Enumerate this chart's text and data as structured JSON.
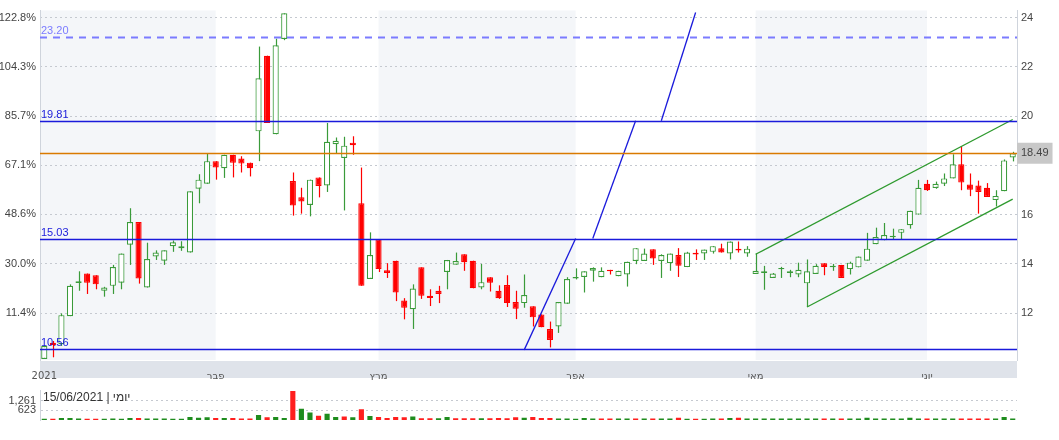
{
  "chart_data": [
    {
      "type": "candlestick",
      "categories": [
        "2021",
        null,
        null,
        null,
        null,
        null,
        null,
        null,
        null,
        null,
        null,
        null,
        null,
        null,
        null,
        null,
        null,
        null,
        null,
        null,
        "פבר",
        null,
        null,
        null,
        null,
        null,
        null,
        null,
        null,
        null,
        null,
        null,
        null,
        null,
        null,
        null,
        null,
        null,
        null,
        "מרץ",
        null,
        null,
        null,
        null,
        null,
        null,
        null,
        null,
        null,
        null,
        null,
        null,
        null,
        null,
        null,
        null,
        null,
        null,
        null,
        null,
        null,
        null,
        "אפר",
        null,
        null,
        null,
        null,
        null,
        null,
        null,
        null,
        null,
        null,
        null,
        null,
        null,
        null,
        null,
        null,
        null,
        null,
        null,
        null,
        "מאי",
        null,
        null,
        null,
        null,
        null,
        null,
        null,
        null,
        null,
        null,
        null,
        null,
        null,
        null,
        null,
        null,
        null,
        null,
        null,
        "יוני",
        null,
        null,
        null,
        null,
        null,
        null,
        null,
        null,
        null,
        null
      ],
      "ohlc": [
        [
          10.14,
          10.67,
          10.14,
          10.67
        ],
        [
          10.8,
          10.87,
          10.21,
          10.71
        ],
        [
          10.74,
          11.99,
          10.67,
          11.92
        ],
        [
          11.88,
          13.17,
          11.88,
          13.11
        ],
        [
          13.22,
          13.7,
          12.91,
          13.3
        ],
        [
          13.61,
          13.61,
          12.78,
          13.24
        ],
        [
          13.54,
          13.54,
          12.97,
          13.17
        ],
        [
          12.91,
          13.07,
          12.67,
          13.04
        ],
        [
          13.11,
          13.96,
          12.78,
          13.87
        ],
        [
          13.24,
          14.42,
          12.97,
          14.42
        ],
        [
          14.78,
          16.26,
          13.96,
          15.7
        ],
        [
          15.7,
          15.7,
          13.2,
          13.41
        ],
        [
          13.04,
          14.86,
          13.04,
          14.2
        ],
        [
          14.3,
          14.55,
          14.16,
          14.46
        ],
        [
          14.13,
          14.55,
          13.96,
          14.55
        ],
        [
          14.72,
          14.95,
          14.49,
          14.88
        ],
        [
          14.64,
          14.92,
          14.53,
          14.72
        ],
        [
          14.46,
          16.95,
          14.46,
          16.95
        ],
        [
          17.05,
          17.64,
          16.46,
          17.42
        ],
        [
          17.25,
          18.47,
          17.25,
          18.17
        ],
        [
          18.17,
          18.17,
          17.42,
          17.91
        ],
        [
          17.88,
          18.43,
          17.49,
          18.43
        ],
        [
          18.43,
          18.43,
          17.51,
          18.11
        ],
        [
          18.28,
          18.37,
          17.71,
          18.07
        ],
        [
          18.11,
          18.11,
          17.55,
          17.88
        ],
        [
          19.38,
          22.82,
          18.17,
          21.53
        ],
        [
          22.45,
          22.45,
          19.72,
          19.72
        ],
        [
          19.26,
          23.14,
          19.26,
          22.87
        ],
        [
          23.13,
          24.17,
          23.08,
          24.17
        ],
        [
          17.36,
          17.71,
          15.96,
          16.37
        ],
        [
          16.7,
          17.09,
          16.04,
          16.53
        ],
        [
          16.39,
          17.42,
          15.93,
          17.42
        ],
        [
          17.51,
          17.51,
          16.7,
          17.16
        ],
        [
          17.18,
          19.72,
          16.92,
          18.96
        ],
        [
          18.86,
          19.13,
          18.5,
          19.0
        ],
        [
          18.3,
          19.16,
          16.17,
          18.8
        ],
        [
          18.92,
          19.18,
          18.43,
          18.82
        ],
        [
          16.46,
          17.91,
          13.11,
          13.11
        ],
        [
          13.39,
          15.28,
          13.39,
          14.36
        ],
        [
          15.01,
          15.01,
          13.67,
          13.79
        ],
        [
          13.74,
          14.03,
          13.43,
          13.63
        ],
        [
          14.13,
          14.13,
          12.49,
          12.84
        ],
        [
          12.51,
          12.61,
          11.75,
          12.22
        ],
        [
          12.16,
          13.17,
          11.36,
          13.0
        ],
        [
          13.86,
          13.86,
          12.58,
          12.71
        ],
        [
          12.71,
          12.97,
          12.29,
          12.62
        ],
        [
          12.91,
          13.11,
          12.41,
          12.78
        ],
        [
          13.67,
          14.16,
          12.97,
          14.16
        ],
        [
          13.97,
          14.46,
          13.97,
          14.12
        ],
        [
          14.39,
          14.39,
          13.72,
          14.07
        ],
        [
          14.13,
          14.13,
          13.01,
          13.01
        ],
        [
          13.04,
          14.0,
          12.97,
          13.26
        ],
        [
          13.46,
          13.46,
          12.88,
          13.24
        ],
        [
          12.91,
          13.13,
          12.58,
          12.61
        ],
        [
          13.14,
          13.54,
          12.25,
          12.41
        ],
        [
          12.45,
          12.91,
          11.76,
          12.18
        ],
        [
          12.41,
          13.57,
          12.22,
          12.74
        ],
        [
          12.28,
          12.28,
          11.46,
          11.83
        ],
        [
          11.95,
          11.95,
          11.43,
          11.43
        ],
        [
          11.36,
          11.66,
          10.61,
          10.91
        ],
        [
          11.46,
          12.45,
          11.2,
          12.45
        ],
        [
          12.38,
          13.46,
          12.38,
          13.39
        ],
        [
          13.41,
          13.82,
          13.37,
          13.47
        ],
        [
          13.47,
          13.7,
          12.84,
          13.7
        ],
        [
          13.72,
          13.86,
          13.28,
          13.83
        ],
        [
          13.46,
          13.86,
          13.46,
          13.72
        ],
        [
          13.76,
          13.76,
          13.57,
          13.7
        ],
        [
          13.5,
          13.72,
          13.5,
          13.72
        ],
        [
          13.57,
          14.09,
          13.08,
          14.09
        ],
        [
          14.12,
          14.64,
          13.99,
          14.64
        ],
        [
          14.12,
          14.62,
          14.12,
          14.42
        ],
        [
          14.59,
          14.59,
          13.96,
          14.22
        ],
        [
          14.12,
          14.39,
          13.43,
          14.36
        ],
        [
          14.03,
          14.42,
          13.72,
          14.42
        ],
        [
          14.36,
          14.64,
          13.47,
          13.92
        ],
        [
          13.87,
          14.49,
          13.87,
          14.46
        ],
        [
          14.45,
          14.59,
          14.16,
          14.38
        ],
        [
          14.42,
          14.58,
          14.16,
          14.58
        ],
        [
          14.49,
          14.72,
          14.42,
          14.72
        ],
        [
          14.64,
          14.82,
          14.46,
          14.46
        ],
        [
          14.42,
          14.91,
          14.18,
          14.91
        ],
        [
          14.62,
          14.91,
          14.46,
          14.54
        ],
        [
          14.42,
          14.72,
          14.29,
          14.62
        ],
        [
          13.59,
          14.42,
          13.59,
          13.72
        ],
        [
          13.63,
          13.92,
          12.95,
          13.7
        ],
        [
          13.43,
          13.63,
          13.43,
          13.61
        ],
        [
          13.78,
          13.88,
          13.43,
          13.83
        ],
        [
          13.63,
          13.76,
          13.46,
          13.7
        ],
        [
          13.57,
          14.05,
          13.46,
          13.76
        ],
        [
          13.21,
          14.18,
          12.25,
          13.7
        ],
        [
          13.59,
          13.99,
          13.59,
          13.92
        ],
        [
          14.03,
          14.03,
          13.54,
          13.87
        ],
        [
          13.86,
          14.0,
          13.72,
          13.93
        ],
        [
          13.96,
          13.96,
          13.43,
          13.43
        ],
        [
          13.79,
          14.09,
          13.57,
          14.05
        ],
        [
          13.86,
          14.3,
          13.86,
          14.3
        ],
        [
          14.13,
          15.26,
          14.13,
          14.62
        ],
        [
          14.8,
          15.47,
          14.8,
          15.09
        ],
        [
          14.96,
          15.66,
          14.96,
          15.17
        ],
        [
          15.08,
          15.43,
          14.97,
          15.14
        ],
        [
          15.26,
          15.41,
          14.97,
          15.41
        ],
        [
          15.57,
          16.16,
          15.43,
          16.16
        ],
        [
          16.0,
          17.41,
          16.0,
          17.09
        ],
        [
          17.25,
          17.41,
          16.96,
          16.99
        ],
        [
          17.08,
          17.34,
          17.05,
          17.25
        ],
        [
          17.25,
          17.67,
          17.16,
          17.47
        ],
        [
          17.47,
          18.45,
          17.47,
          18.04
        ],
        [
          18.04,
          18.78,
          16.99,
          17.3
        ],
        [
          17.22,
          17.67,
          16.75,
          17.01
        ],
        [
          17.18,
          17.38,
          16.04,
          16.92
        ],
        [
          17.09,
          17.28,
          16.72,
          16.72
        ],
        [
          16.59,
          16.99,
          16.33,
          16.76
        ],
        [
          16.95,
          18.24,
          16.95,
          18.2
        ],
        [
          18.32,
          18.55,
          18.16,
          18.49
        ]
      ],
      "colors": [
        "#3a9b3a",
        "#ff0000",
        "#3a9b3a",
        "#3a9b3a",
        "#3a9b3a",
        "#ff0000",
        "#ff0000",
        "#3a9b3a",
        "#3a9b3a",
        "#3a9b3a",
        "#3a9b3a",
        "#ff0000",
        "#3a9b3a",
        "#3a9b3a",
        "#3a9b3a",
        "#3a9b3a",
        "#3a9b3a",
        "#3a9b3a",
        "#3a9b3a",
        "#3a9b3a",
        "#ff0000",
        "#3a9b3a",
        "#ff0000",
        "#ff0000",
        "#ff0000",
        "#3a9b3a",
        "#ff0000",
        "#3a9b3a",
        "#3a9b3a",
        "#ff0000",
        "#ff0000",
        "#3a9b3a",
        "#ff0000",
        "#3a9b3a",
        "#3a9b3a",
        "#3a9b3a",
        "#ff0000",
        "#ff0000",
        "#3a9b3a",
        "#ff0000",
        "#ff0000",
        "#ff0000",
        "#ff0000",
        "#3a9b3a",
        "#ff0000",
        "#ff0000",
        "#ff0000",
        "#3a9b3a",
        "#3a9b3a",
        "#ff0000",
        "#ff0000",
        "#3a9b3a",
        "#ff0000",
        "#ff0000",
        "#ff0000",
        "#ff0000",
        "#3a9b3a",
        "#ff0000",
        "#ff0000",
        "#ff0000",
        "#3a9b3a",
        "#3a9b3a",
        "#3a9b3a",
        "#3a9b3a",
        "#3a9b3a",
        "#3a9b3a",
        "#ff0000",
        "#3a9b3a",
        "#3a9b3a",
        "#3a9b3a",
        "#3a9b3a",
        "#ff0000",
        "#3a9b3a",
        "#3a9b3a",
        "#ff0000",
        "#3a9b3a",
        "#ff0000",
        "#3a9b3a",
        "#3a9b3a",
        "#ff0000",
        "#3a9b3a",
        "#ff0000",
        "#3a9b3a",
        "#3a9b3a",
        "#3a9b3a",
        "#3a9b3a",
        "#3a9b3a",
        "#3a9b3a",
        "#3a9b3a",
        "#3a9b3a",
        "#3a9b3a",
        "#ff0000",
        "#3a9b3a",
        "#ff0000",
        "#3a9b3a",
        "#3a9b3a",
        "#3a9b3a",
        "#3a9b3a",
        "#3a9b3a",
        "#3a9b3a",
        "#3a9b3a",
        "#3a9b3a",
        "#3a9b3a",
        "#ff0000",
        "#3a9b3a",
        "#3a9b3a",
        "#3a9b3a",
        "#ff0000",
        "#ff0000",
        "#ff0000",
        "#ff0000",
        "#3a9b3a",
        "#3a9b3a",
        "#3a9b3a"
      ],
      "series": [
        {
          "type": "line",
          "color": "#2e9a2e",
          "values": [
            null,
            null,
            null,
            null,
            null,
            null,
            null,
            null,
            null,
            null,
            null,
            null,
            null,
            null,
            null,
            null,
            null,
            null,
            null,
            null,
            null,
            null,
            null,
            null,
            null,
            null,
            null,
            null,
            null,
            null,
            null,
            null,
            null,
            null,
            null,
            null,
            null,
            null,
            null,
            null,
            null,
            null,
            null,
            null,
            null,
            null,
            null,
            null,
            null,
            null,
            null,
            null,
            null,
            null,
            null,
            null,
            null,
            null,
            null,
            null,
            null,
            null,
            null,
            null,
            null,
            null,
            null,
            null,
            null,
            null,
            null,
            null,
            null,
            null,
            null,
            null,
            null,
            null,
            null,
            null,
            null,
            null,
            null,
            14.39,
            null,
            null,
            null,
            null,
            null,
            null,
            null,
            null,
            null,
            null,
            null,
            null,
            null,
            null,
            null,
            null,
            null,
            null,
            null,
            null,
            null,
            null,
            null,
            null,
            null,
            null,
            null,
            null,
            null,
            19.86
          ]
        },
        {
          "type": "line",
          "color": "#2e9a2e",
          "values": [
            null,
            null,
            null,
            null,
            null,
            null,
            null,
            null,
            null,
            null,
            null,
            null,
            null,
            null,
            null,
            null,
            null,
            null,
            null,
            null,
            null,
            null,
            null,
            null,
            null,
            null,
            null,
            null,
            null,
            null,
            null,
            null,
            null,
            null,
            null,
            null,
            null,
            null,
            null,
            null,
            null,
            null,
            null,
            null,
            null,
            null,
            null,
            null,
            null,
            null,
            null,
            null,
            null,
            null,
            null,
            null,
            null,
            null,
            null,
            null,
            null,
            null,
            null,
            null,
            null,
            null,
            null,
            null,
            null,
            null,
            null,
            null,
            null,
            null,
            null,
            null,
            null,
            null,
            null,
            null,
            null,
            null,
            null,
            null,
            null,
            null,
            null,
            null,
            null,
            12.25,
            null,
            null,
            null,
            null,
            null,
            null,
            null,
            null,
            null,
            null,
            null,
            null,
            null,
            null,
            null,
            null,
            null,
            null,
            null,
            null,
            null,
            null,
            null,
            16.63
          ]
        },
        {
          "type": "line",
          "color": "#1a1adb",
          "values": [
            null,
            null,
            null,
            null,
            null,
            null,
            null,
            null,
            null,
            null,
            null,
            null,
            null,
            null,
            null,
            null,
            null,
            null,
            null,
            null,
            null,
            null,
            null,
            null,
            null,
            null,
            null,
            null,
            null,
            null,
            null,
            null,
            null,
            null,
            null,
            null,
            null,
            null,
            null,
            null,
            null,
            null,
            null,
            null,
            null,
            null,
            null,
            null,
            null,
            null,
            null,
            null,
            null,
            null,
            null,
            null,
            10.51,
            null,
            null,
            null,
            null,
            null,
            15.03,
            null,
            null,
            null,
            null,
            null,
            null,
            null,
            null,
            null,
            null,
            null,
            null,
            null,
            null,
            null,
            null,
            null,
            null,
            null,
            null,
            null,
            null,
            null,
            null,
            null,
            null,
            null,
            null,
            null,
            null,
            null,
            null,
            null,
            null,
            null,
            null,
            null,
            null,
            null,
            null,
            null,
            null,
            null,
            null,
            null,
            null,
            null,
            null,
            null,
            null,
            null
          ]
        },
        {
          "type": "line",
          "color": "#1a1adb",
          "values": [
            null,
            null,
            null,
            null,
            null,
            null,
            null,
            null,
            null,
            null,
            null,
            null,
            null,
            null,
            null,
            null,
            null,
            null,
            null,
            null,
            null,
            null,
            null,
            null,
            null,
            null,
            null,
            null,
            null,
            null,
            null,
            null,
            null,
            null,
            null,
            null,
            null,
            null,
            null,
            null,
            null,
            null,
            null,
            null,
            null,
            null,
            null,
            null,
            null,
            null,
            null,
            null,
            null,
            null,
            null,
            null,
            null,
            null,
            null,
            null,
            null,
            null,
            null,
            null,
            15.03,
            null,
            null,
            null,
            null,
            19.81,
            null,
            null,
            null,
            null,
            null,
            null,
            null,
            null,
            null,
            null,
            null,
            null,
            null,
            null,
            null,
            null,
            null,
            null,
            null,
            null,
            null,
            null,
            null,
            null,
            null,
            null,
            null,
            null,
            null,
            null,
            null,
            null,
            null,
            null,
            null,
            null,
            null,
            null,
            null,
            null,
            null,
            null,
            null,
            null
          ]
        },
        {
          "type": "line",
          "color": "#1a1adb",
          "values": [
            null,
            null,
            null,
            null,
            null,
            null,
            null,
            null,
            null,
            null,
            null,
            null,
            null,
            null,
            null,
            null,
            null,
            null,
            null,
            null,
            null,
            null,
            null,
            null,
            null,
            null,
            null,
            null,
            null,
            null,
            null,
            null,
            null,
            null,
            null,
            null,
            null,
            null,
            null,
            null,
            null,
            null,
            null,
            null,
            null,
            null,
            null,
            null,
            null,
            null,
            null,
            null,
            null,
            null,
            null,
            null,
            null,
            null,
            null,
            null,
            null,
            null,
            null,
            null,
            null,
            null,
            null,
            null,
            null,
            null,
            null,
            null,
            19.81,
            null,
            null,
            null,
            24.2,
            null,
            null,
            null,
            null,
            null,
            null,
            null,
            null,
            null,
            null,
            null,
            null,
            null,
            null,
            null,
            null,
            null,
            null,
            null,
            null,
            null,
            null,
            null,
            null,
            null,
            null,
            null,
            null,
            null,
            null,
            null,
            null,
            null,
            null,
            null,
            null,
            null
          ]
        }
      ],
      "ylim": [
        10.1,
        24.28
      ],
      "yticks": [
        12,
        14,
        16,
        {
          "value": 18,
          "label": null
        },
        {
          "value": 18.49,
          "label": "18.49"
        },
        20,
        22,
        24
      ],
      "y2lim": [
        -6.24,
        125.4
      ],
      "y2ticks": [
        {
          "value": 11.4,
          "label": "11.4%"
        },
        {
          "value": 30.0,
          "label": "30.0%"
        },
        {
          "value": 48.6,
          "label": "48.6%"
        },
        {
          "value": 67.1,
          "label": "67.1%"
        },
        {
          "value": 85.7,
          "label": "85.7%"
        },
        {
          "value": 104.3,
          "label": "104.3%"
        },
        {
          "value": 122.8,
          "label": "122.8%"
        }
      ],
      "ref_lines": [
        {
          "axis": "y",
          "value": 23.2,
          "label": "23.20",
          "color": "#7b7bff",
          "line_style": "dashed"
        },
        {
          "axis": "y",
          "value": 19.81,
          "label": "19.81",
          "color": "#1a1adb"
        },
        {
          "axis": "y",
          "value": 18.49,
          "color": "#d97a00"
        },
        {
          "axis": "y",
          "value": 15.03,
          "label": "15.03",
          "color": "#1a1adb"
        },
        {
          "axis": "y",
          "value": 10.56,
          "label": "10.56",
          "color": "#1a1adb"
        }
      ],
      "bands": [
        {
          "axis": "x",
          "from": "2021",
          "to": "פבר",
          "color": "#f4f6f9"
        },
        {
          "axis": "x",
          "from": "מרץ",
          "to": "אפר",
          "color": "#f4f6f9"
        },
        {
          "axis": "x",
          "from": "מאי",
          "to": "יוני",
          "color": "#f4f6f9"
        }
      ],
      "grid": "y"
    },
    {
      "type": "bar",
      "title": "15/06/2021 | יומי",
      "categories": [
        null,
        null,
        null,
        null,
        null,
        null,
        null,
        null,
        null,
        null,
        null,
        null,
        null,
        null,
        null,
        null,
        null,
        null,
        null,
        null,
        null,
        null,
        null,
        null,
        null,
        null,
        null,
        null,
        null,
        null,
        null,
        null,
        null,
        null,
        null,
        null,
        null,
        null,
        null,
        null,
        null,
        null,
        null,
        null,
        null,
        null,
        null,
        null,
        null,
        null,
        null,
        null,
        null,
        null,
        null,
        null,
        null,
        null,
        null,
        null,
        null,
        null,
        null,
        null,
        null,
        null,
        null,
        null,
        null,
        null,
        null,
        null,
        null,
        null,
        null,
        null,
        null,
        null,
        null,
        null,
        null,
        null,
        null,
        null,
        null,
        null,
        null,
        null,
        null,
        null,
        null,
        null,
        null,
        null,
        null,
        null,
        null,
        null,
        null,
        null,
        null,
        null,
        null,
        null,
        null,
        null,
        null,
        null,
        null,
        null,
        null,
        null,
        null,
        null
      ],
      "values": [
        80,
        80,
        130,
        130,
        100,
        80,
        80,
        80,
        100,
        80,
        130,
        130,
        100,
        100,
        100,
        80,
        80,
        200,
        150,
        170,
        130,
        130,
        130,
        100,
        100,
        330,
        180,
        200,
        130,
        1870,
        720,
        480,
        280,
        410,
        200,
        230,
        180,
        690,
        260,
        200,
        130,
        200,
        170,
        230,
        110,
        110,
        110,
        200,
        110,
        110,
        110,
        110,
        110,
        130,
        110,
        170,
        150,
        200,
        130,
        130,
        100,
        100,
        80,
        130,
        100,
        100,
        100,
        100,
        100,
        100,
        100,
        100,
        100,
        100,
        150,
        80,
        80,
        80,
        100,
        100,
        130,
        150,
        100,
        100,
        100,
        100,
        100,
        100,
        100,
        100,
        100,
        100,
        100,
        100,
        100,
        100,
        150,
        100,
        100,
        100,
        100,
        150,
        100,
        100,
        100,
        100,
        100,
        100,
        100,
        100,
        100,
        100,
        200,
        100
      ],
      "colors": [
        "#1e8c1e",
        "#ff1e1e",
        "#1e8c1e",
        "#1e8c1e",
        "#1e8c1e",
        "#ff1e1e",
        "#ff1e1e",
        "#1e8c1e",
        "#1e8c1e",
        "#1e8c1e",
        "#1e8c1e",
        "#ff1e1e",
        "#1e8c1e",
        "#1e8c1e",
        "#1e8c1e",
        "#1e8c1e",
        "#1e8c1e",
        "#1e8c1e",
        "#1e8c1e",
        "#1e8c1e",
        "#ff1e1e",
        "#1e8c1e",
        "#ff1e1e",
        "#ff1e1e",
        "#ff1e1e",
        "#1e8c1e",
        "#ff1e1e",
        "#1e8c1e",
        "#1e8c1e",
        "#ff1e1e",
        "#1e8c1e",
        "#1e8c1e",
        "#ff1e1e",
        "#1e8c1e",
        "#1e8c1e",
        "#ff1e1e",
        "#1e8c1e",
        "#ff1e1e",
        "#1e8c1e",
        "#ff1e1e",
        "#ff1e1e",
        "#ff1e1e",
        "#ff1e1e",
        "#1e8c1e",
        "#ff1e1e",
        "#ff1e1e",
        "#1e8c1e",
        "#1e8c1e",
        "#ff1e1e",
        "#ff1e1e",
        "#ff1e1e",
        "#1e8c1e",
        "#ff1e1e",
        "#ff1e1e",
        "#ff1e1e",
        "#ff1e1e",
        "#1e8c1e",
        "#ff1e1e",
        "#ff1e1e",
        "#ff1e1e",
        "#1e8c1e",
        "#1e8c1e",
        "#1e8c1e",
        "#1e8c1e",
        "#1e8c1e",
        "#ff1e1e",
        "#ff1e1e",
        "#1e8c1e",
        "#1e8c1e",
        "#ff1e1e",
        "#1e8c1e",
        "#ff1e1e",
        "#1e8c1e",
        "#1e8c1e",
        "#ff1e1e",
        "#1e8c1e",
        "#ff1e1e",
        "#1e8c1e",
        "#1e8c1e",
        "#ff1e1e",
        "#1e8c1e",
        "#ff1e1e",
        "#1e8c1e",
        "#1e8c1e",
        "#1e8c1e",
        "#1e8c1e",
        "#1e8c1e",
        "#1e8c1e",
        "#1e8c1e",
        "#1e8c1e",
        "#1e8c1e",
        "#ff1e1e",
        "#1e8c1e",
        "#ff1e1e",
        "#1e8c1e",
        "#1e8c1e",
        "#1e8c1e",
        "#1e8c1e",
        "#1e8c1e",
        "#1e8c1e",
        "#1e8c1e",
        "#1e8c1e",
        "#1e8c1e",
        "#ff1e1e",
        "#1e8c1e",
        "#1e8c1e",
        "#1e8c1e",
        "#ff1e1e",
        "#ff1e1e",
        "#ff1e1e",
        "#ff1e1e",
        "#1e8c1e",
        "#1e8c1e",
        "#1e8c1e"
      ],
      "ylim": [
        0,
        1900
      ],
      "yticks": [
        623,
        {
          "value": 1261,
          "label": "1,261"
        }
      ],
      "grid": "y",
      "tick_labels": "y"
    }
  ]
}
